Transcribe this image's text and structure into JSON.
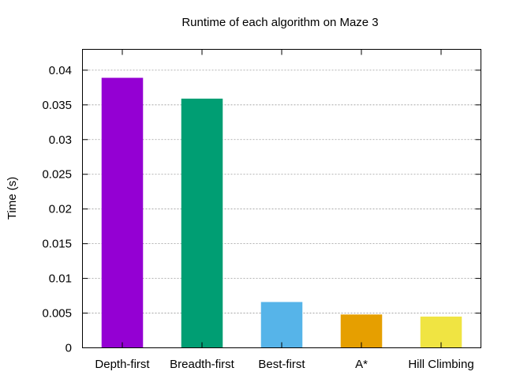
{
  "chart_data": {
    "type": "bar",
    "title": "Runtime of each algorithm on Maze 3",
    "xlabel": "",
    "ylabel": "Time (s)",
    "categories": [
      "Depth-first",
      "Breadth-first",
      "Best-first",
      "A*",
      "Hill Climbing"
    ],
    "values": [
      0.0389,
      0.0359,
      0.0066,
      0.0048,
      0.0045
    ],
    "colors": [
      "#9400d3",
      "#009e73",
      "#56b4e9",
      "#e69f00",
      "#f0e442"
    ],
    "ylim": [
      0,
      0.043
    ],
    "yticks": [
      0,
      0.005,
      0.01,
      0.015,
      0.02,
      0.025,
      0.03,
      0.035,
      0.04
    ],
    "ytick_labels": [
      "0",
      "0.005",
      "0.01",
      "0.015",
      "0.02",
      "0.025",
      "0.03",
      "0.035",
      "0.04"
    ],
    "grid": true,
    "legend": "none"
  }
}
